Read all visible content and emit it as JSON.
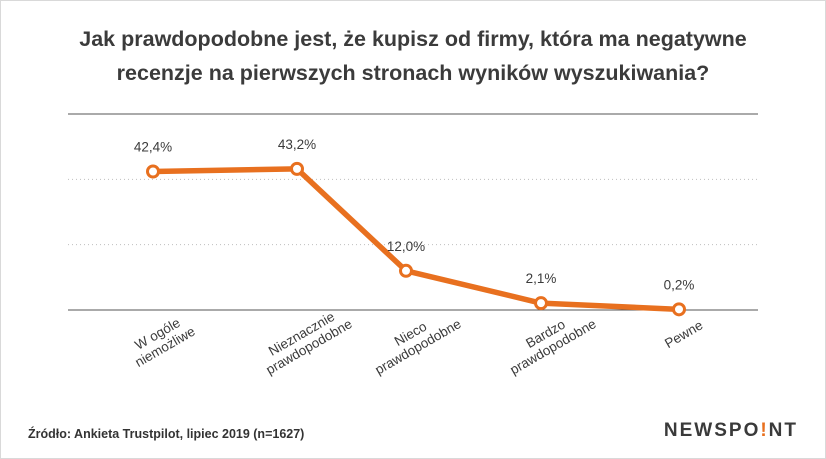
{
  "title_lines": [
    "Jak prawdopodobne jest, że kupisz od firmy, która ma negatywne",
    "recenzje na pierwszych stronach wyników wyszukiwania?"
  ],
  "source": "Źródło: Ankieta Trustpilot, lipiec 2019 (n=1627)",
  "logo": {
    "before": "NEWSPO",
    "dot": "!",
    "after": "NT"
  },
  "colors": {
    "line": "#e8701f",
    "text": "#3b3b3b",
    "grid": "#bfbfbf",
    "axis": "#555555"
  },
  "chart_data": {
    "type": "line",
    "title": "Jak prawdopodobne jest, że kupisz od firmy, która ma negatywne recenzje na pierwszych stronach wyników wyszukiwania?",
    "categories": [
      [
        "W ogóle",
        "niemożliwe"
      ],
      [
        "Nieznacznie",
        "prawdopodobne"
      ],
      [
        "Nieco",
        "prawdopodobne"
      ],
      [
        "Bardzo",
        "prawdopodobne"
      ],
      [
        "Pewne"
      ]
    ],
    "values": [
      42.4,
      43.2,
      12.0,
      2.1,
      0.2
    ],
    "data_labels": [
      "42,4%",
      "43,2%",
      "12,0%",
      "2,1%",
      "0,2%"
    ],
    "ylim": [
      0,
      60
    ],
    "grid": true,
    "xlabel": "",
    "ylabel": ""
  }
}
